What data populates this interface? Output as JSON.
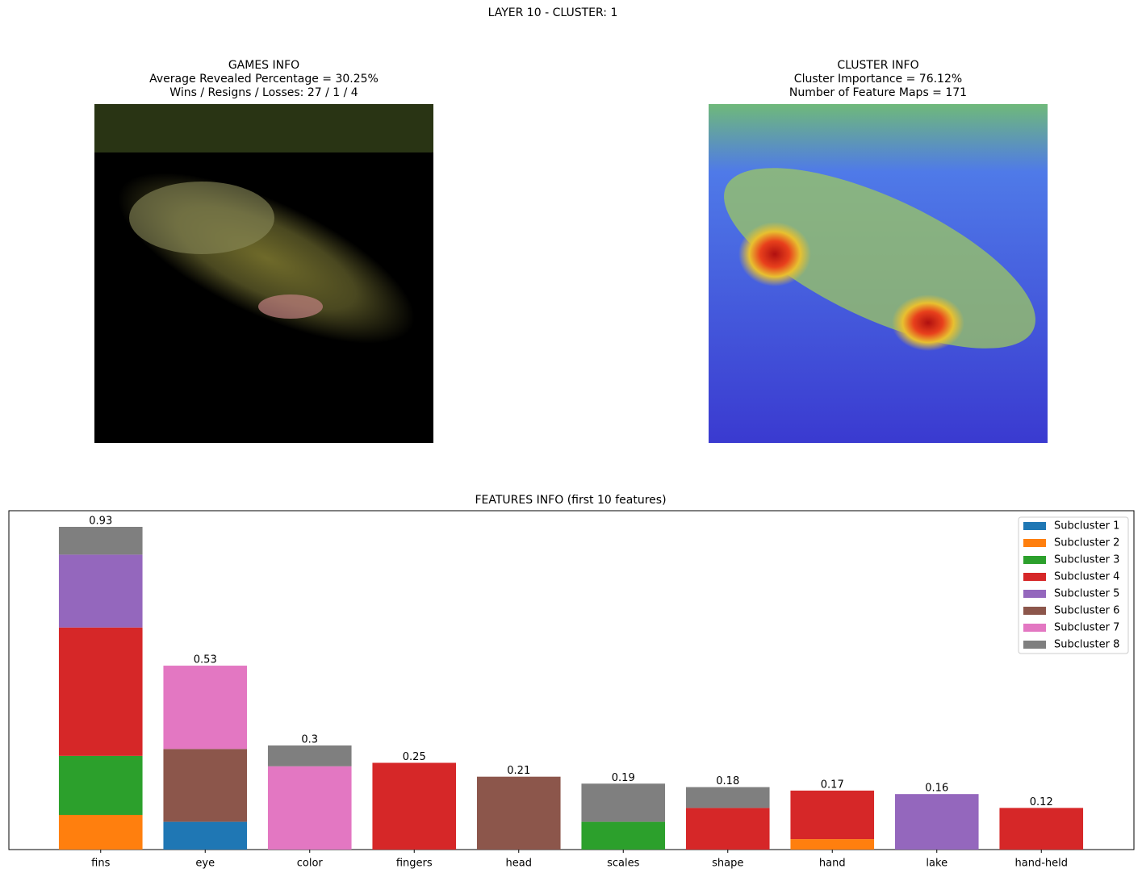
{
  "figure_title": "LAYER 10 - CLUSTER: 1",
  "panels": [
    {
      "lines": [
        "GAMES INFO",
        "Average Revealed Percentage = 30.25%",
        "Wins / Resigns / Losses: 27 / 1 / 4"
      ]
    },
    {
      "lines": [
        "CLUSTER INFO",
        "Cluster Importance = 76.12%",
        "Number of Feature Maps = 171"
      ]
    }
  ],
  "chart_data": {
    "type": "stacked_bar",
    "title": "FEATURES INFO (first 10 features)",
    "categories": [
      "fins",
      "eye",
      "color",
      "fingers",
      "head",
      "scales",
      "shape",
      "hand",
      "lake",
      "hand-held"
    ],
    "ylim": [
      0,
      0.9765
    ],
    "legend": "upper right",
    "totals": [
      0.93,
      0.53,
      0.3,
      0.25,
      0.21,
      0.19,
      0.18,
      0.17,
      0.16,
      0.12
    ],
    "series": [
      {
        "name": "Subcluster 1",
        "color": "#1f77b4",
        "values": [
          0,
          0.08,
          0,
          0,
          0,
          0,
          0,
          0,
          0,
          0
        ]
      },
      {
        "name": "Subcluster 2",
        "color": "#ff7f0e",
        "values": [
          0.1,
          0,
          0,
          0,
          0,
          0,
          0,
          0.03,
          0,
          0
        ]
      },
      {
        "name": "Subcluster 3",
        "color": "#2ca02c",
        "values": [
          0.17,
          0,
          0,
          0,
          0,
          0.08,
          0,
          0,
          0,
          0
        ]
      },
      {
        "name": "Subcluster 4",
        "color": "#d62728",
        "values": [
          0.37,
          0,
          0,
          0.25,
          0,
          0,
          0.12,
          0.14,
          0,
          0.12
        ]
      },
      {
        "name": "Subcluster 5",
        "color": "#9467bd",
        "values": [
          0.21,
          0,
          0,
          0,
          0,
          0,
          0,
          0,
          0.16,
          0
        ]
      },
      {
        "name": "Subcluster 6",
        "color": "#8c564b",
        "values": [
          0,
          0.21,
          0,
          0,
          0.21,
          0,
          0,
          0,
          0,
          0
        ]
      },
      {
        "name": "Subcluster 7",
        "color": "#e377c2",
        "values": [
          0,
          0.24,
          0.24,
          0,
          0,
          0,
          0,
          0,
          0,
          0
        ]
      },
      {
        "name": "Subcluster 8",
        "color": "#7f7f7f",
        "values": [
          0.08,
          0,
          0.06,
          0,
          0,
          0.11,
          0.06,
          0,
          0,
          0
        ]
      }
    ]
  }
}
